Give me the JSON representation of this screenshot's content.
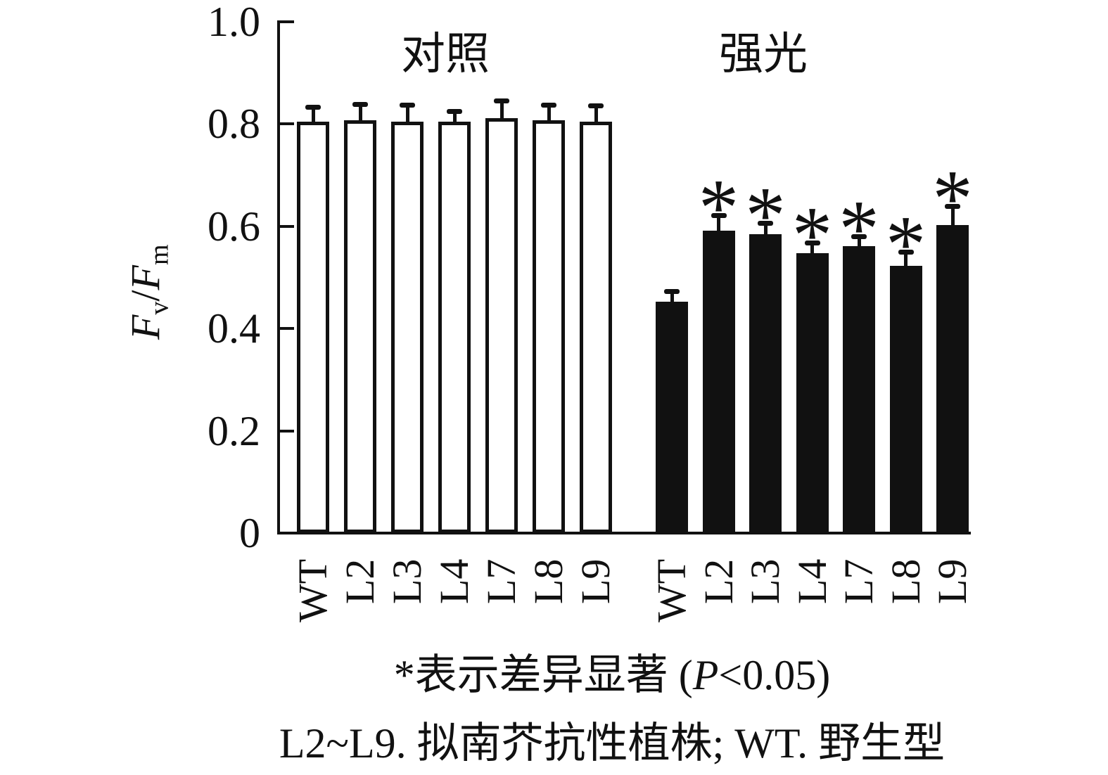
{
  "figure": {
    "y_axis_label": {
      "numerator": "F",
      "numerator_sub": "v",
      "divider": "/",
      "denominator": "F",
      "denominator_sub": "m"
    },
    "caption_significance": {
      "pre": "*表示差异显著 (",
      "p": "P",
      "post": "<0.05)"
    },
    "caption_legend": "L2~L9. 拟南芥抗性植株; WT. 野生型"
  },
  "chart_data": {
    "type": "bar",
    "title": "",
    "xlabel": "",
    "ylabel": "Fv/Fm",
    "ylim": [
      0,
      1.0
    ],
    "grid": false,
    "yticks": [
      {
        "value": 0,
        "label": "0"
      },
      {
        "value": 0.2,
        "label": "0.2"
      },
      {
        "value": 0.4,
        "label": "0.4"
      },
      {
        "value": 0.6,
        "label": "0.6"
      },
      {
        "value": 0.8,
        "label": "0.8"
      },
      {
        "value": 1.0,
        "label": "1.0"
      }
    ],
    "categories": [
      "WT",
      "L2",
      "L3",
      "L4",
      "L7",
      "L8",
      "L9"
    ],
    "series": [
      {
        "name": "对照",
        "style": "open",
        "values": [
          0.804,
          0.807,
          0.804,
          0.804,
          0.812,
          0.807,
          0.805
        ],
        "errors": [
          0.029,
          0.032,
          0.034,
          0.021,
          0.034,
          0.031,
          0.032
        ],
        "significant": [
          false,
          false,
          false,
          false,
          false,
          false,
          false
        ]
      },
      {
        "name": "强光",
        "style": "filled",
        "values": [
          0.452,
          0.591,
          0.584,
          0.547,
          0.561,
          0.523,
          0.602
        ],
        "errors": [
          0.021,
          0.031,
          0.022,
          0.021,
          0.019,
          0.027,
          0.038
        ],
        "significant": [
          false,
          true,
          true,
          true,
          true,
          true,
          true
        ]
      }
    ],
    "significance_marker": "*",
    "annotation": "*表示差异显著 (P<0.05)",
    "legend_note": "L2~L9. 拟南芥抗性植株; WT. 野生型",
    "colors": {
      "ink": "#111111",
      "open_bar_fill": "#ffffff"
    }
  }
}
